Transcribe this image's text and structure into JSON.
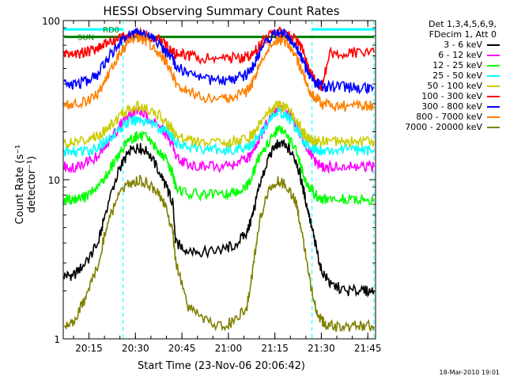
{
  "title": "HESSI Observing Summary Count Rates",
  "xlabel": "Start Time (23-Nov-06 20:06:42)",
  "ylabel": "Count Rate (s⁻¹ detector⁻¹)",
  "footer": "18-Mar-2010 19:01",
  "legend": {
    "line1": "Det 1,3,4,5,6,9,",
    "line2": "FDecim 1, Att 0"
  },
  "annotations": {
    "rd": "RD0",
    "sun": "SUN"
  },
  "chart_data": {
    "type": "line",
    "title": "HESSI Observing Summary Count Rates",
    "xlabel": "Start Time (23-Nov-06 20:06:42)",
    "ylabel": "Count Rate (s^-1 detector^-1)",
    "yscale": "log",
    "ylim": [
      1,
      100
    ],
    "xlim": [
      "20:07",
      "21:47"
    ],
    "x_ticks": [
      "20:15",
      "20:30",
      "20:45",
      "21:00",
      "21:15",
      "21:30",
      "21:45"
    ],
    "y_ticks": [
      "1",
      "10",
      "100"
    ],
    "x_minutes": [
      7,
      10,
      14,
      18,
      21,
      25,
      28,
      31,
      34,
      38,
      40,
      42,
      43,
      47,
      52,
      58,
      62,
      66,
      68,
      70,
      73,
      76,
      79,
      82,
      84,
      86,
      88,
      90,
      93,
      98,
      103,
      107
    ],
    "series": [
      {
        "name": "3 - 6 keV",
        "color": "#000000",
        "values": [
          2.5,
          2.5,
          3,
          4,
          7,
          12,
          15,
          16,
          15,
          11,
          9,
          7.3,
          4,
          3.6,
          3.5,
          3.6,
          3.9,
          4.6,
          6.2,
          9,
          14,
          17,
          16,
          13,
          9,
          6,
          4,
          2.7,
          2.2,
          2,
          2,
          2
        ]
      },
      {
        "name": "6 - 12 keV",
        "color": "#ff00ff",
        "values": [
          12,
          12,
          13,
          14,
          17,
          22,
          26,
          27,
          25,
          21,
          19,
          17,
          14,
          12.5,
          12,
          12.1,
          12.5,
          13.5,
          15,
          18,
          24,
          29,
          27,
          22,
          18,
          15,
          13,
          12,
          12,
          12,
          12,
          12
        ]
      },
      {
        "name": "12 - 25 keV",
        "color": "#00ff00",
        "values": [
          7.5,
          7.5,
          7.8,
          9,
          11,
          15,
          18,
          19,
          18,
          15,
          13,
          11,
          9,
          8.2,
          8,
          8,
          8.3,
          9,
          11,
          14,
          17,
          21,
          19,
          15,
          11,
          9,
          8,
          7.5,
          7.5,
          7.5,
          7.5,
          7.5
        ]
      },
      {
        "name": "25 - 50 keV",
        "color": "#00ffff",
        "values": [
          15,
          15,
          15,
          16,
          18,
          21,
          23,
          24,
          23,
          21,
          20,
          19,
          17,
          16,
          15.5,
          15.5,
          15.6,
          16,
          17,
          19,
          23,
          27,
          25,
          21,
          18,
          16,
          15.5,
          15.3,
          15.3,
          15.3,
          15.3,
          15.3
        ]
      },
      {
        "name": "50 - 100 keV",
        "color": "#cccc00",
        "values": [
          17,
          17,
          18,
          19,
          21,
          25,
          28,
          29,
          28,
          25,
          23,
          21,
          19,
          18,
          17,
          17,
          17.5,
          18,
          19.5,
          22,
          27,
          30,
          28,
          24,
          20,
          18,
          17.5,
          17.5,
          17.5,
          17.5,
          17.5,
          17.5
        ]
      },
      {
        "name": "100 - 300 keV",
        "color": "#ff0000",
        "values": [
          62,
          62,
          63,
          68,
          72,
          77,
          80,
          82,
          80,
          75,
          70,
          62,
          62,
          60,
          58,
          58,
          58,
          59,
          62,
          70,
          80,
          84,
          82,
          75,
          66,
          48,
          42,
          38,
          63,
          63,
          63,
          63
        ]
      },
      {
        "name": "300 - 800 keV",
        "color": "#0000ff",
        "values": [
          40,
          40,
          41,
          46,
          58,
          72,
          82,
          85,
          80,
          70,
          62,
          58,
          52,
          47,
          43,
          42,
          43,
          46,
          52,
          62,
          76,
          84,
          80,
          68,
          56,
          46,
          41,
          39,
          38,
          38,
          38,
          38
        ]
      },
      {
        "name": "800 - 7000 keV",
        "color": "#ff8000",
        "values": [
          30,
          30,
          31,
          35,
          45,
          62,
          75,
          78,
          74,
          62,
          53,
          46,
          40,
          36,
          33,
          32,
          33,
          36,
          41,
          52,
          66,
          76,
          72,
          58,
          46,
          37,
          33,
          30,
          29,
          29,
          29,
          29
        ]
      },
      {
        "name": "7000 - 20000 keV",
        "color": "#808000",
        "values": [
          1.2,
          1.3,
          1.8,
          3,
          5.5,
          8,
          9.5,
          10,
          9.5,
          8,
          6.5,
          4.8,
          3,
          1.6,
          1.3,
          1.2,
          1.3,
          1.6,
          2.8,
          5.5,
          8.5,
          10,
          9,
          7,
          4.5,
          2.5,
          1.6,
          1.3,
          1.2,
          1.2,
          1.2,
          1.2
        ]
      }
    ],
    "flags": [
      {
        "name": "RD0",
        "color": "#00ffff",
        "value": 88,
        "intervals": [
          [
            7,
            26
          ],
          [
            87,
            107
          ]
        ]
      },
      {
        "name": "SUN",
        "color": "#008000",
        "value": 79,
        "intervals": [
          [
            7,
            107
          ]
        ]
      }
    ],
    "vertical_markers": {
      "color": "#00ffff",
      "x_minutes": [
        26,
        87,
        107
      ]
    }
  }
}
